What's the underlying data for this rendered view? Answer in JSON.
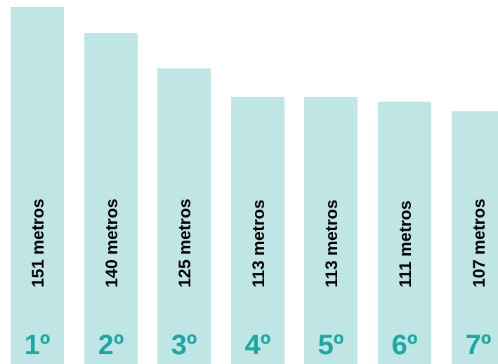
{
  "chart_data": {
    "type": "bar",
    "categories": [
      "1º",
      "2º",
      "3º",
      "4º",
      "5º",
      "6º",
      "7º"
    ],
    "values": [
      151,
      140,
      125,
      113,
      113,
      111,
      107
    ],
    "value_labels": [
      "151 metros",
      "140 metros",
      "125 metros",
      "113 metros",
      "113 metros",
      "111 metros",
      "107 metros"
    ],
    "unit": "metros",
    "title": "",
    "xlabel": "",
    "ylabel": "",
    "ylim": [
      0,
      151
    ],
    "grid": false,
    "legend": "none",
    "bar_color": "#bfe5e5",
    "rank_color": "#1aa8a3",
    "value_label_color": "#000000"
  }
}
